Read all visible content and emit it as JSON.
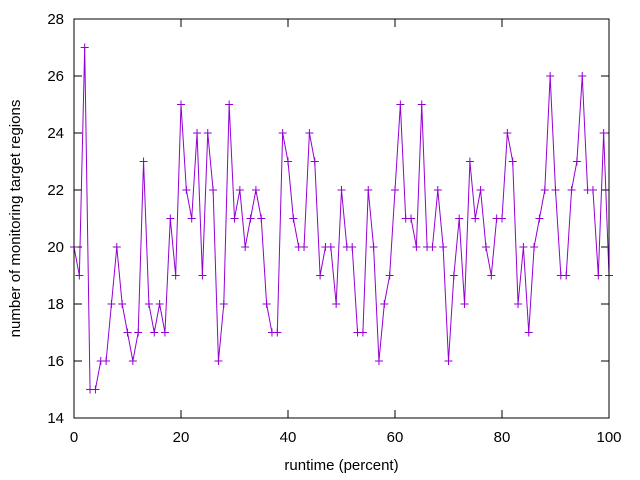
{
  "chart_data": {
    "type": "line",
    "title": "",
    "xlabel": "runtime (percent)",
    "ylabel": "number of monitoring target regions",
    "xlim": [
      0,
      100
    ],
    "ylim": [
      14,
      28
    ],
    "xticks": [
      0,
      20,
      40,
      60,
      80,
      100
    ],
    "yticks": [
      14,
      16,
      18,
      20,
      22,
      24,
      26,
      28
    ],
    "grid": false,
    "legend": "none",
    "marker": "plus",
    "color": "#9400d3",
    "series": [
      {
        "x": [
          0,
          1,
          2,
          3,
          4,
          5,
          6,
          7,
          8,
          9,
          10,
          11,
          12,
          13,
          14,
          15,
          16,
          17,
          18,
          19,
          20,
          21,
          22,
          23,
          24,
          25,
          26,
          27,
          28,
          29,
          30,
          31,
          32,
          33,
          34,
          35,
          36,
          37,
          38,
          39,
          40,
          41,
          42,
          43,
          44,
          45,
          46,
          47,
          48,
          49,
          50,
          51,
          52,
          53,
          54,
          55,
          56,
          57,
          58,
          59,
          60,
          61,
          62,
          63,
          64,
          65,
          66,
          67,
          68,
          69,
          70,
          71,
          72,
          73,
          74,
          75,
          76,
          77,
          78,
          79,
          80,
          81,
          82,
          83,
          84,
          85,
          86,
          87,
          88,
          89,
          90,
          91,
          92,
          93,
          94,
          95,
          96,
          97,
          98,
          99,
          100
        ],
        "values": [
          20,
          19,
          27,
          15,
          15,
          16,
          16,
          18,
          20,
          18,
          17,
          16,
          17,
          23,
          18,
          17,
          18,
          17,
          21,
          19,
          25,
          22,
          21,
          24,
          19,
          24,
          22,
          16,
          18,
          25,
          21,
          22,
          20,
          21,
          22,
          21,
          18,
          17,
          17,
          24,
          23,
          21,
          20,
          20,
          24,
          23,
          19,
          20,
          20,
          18,
          22,
          20,
          20,
          17,
          17,
          22,
          20,
          16,
          18,
          19,
          22,
          25,
          21,
          21,
          20,
          25,
          20,
          20,
          22,
          20,
          16,
          19,
          21,
          18,
          23,
          21,
          22,
          20,
          19,
          21,
          21,
          24,
          23,
          18,
          20,
          17,
          20,
          21,
          22,
          26,
          22,
          19,
          19,
          22,
          23,
          26,
          22,
          22,
          19,
          24,
          19
        ]
      }
    ]
  }
}
